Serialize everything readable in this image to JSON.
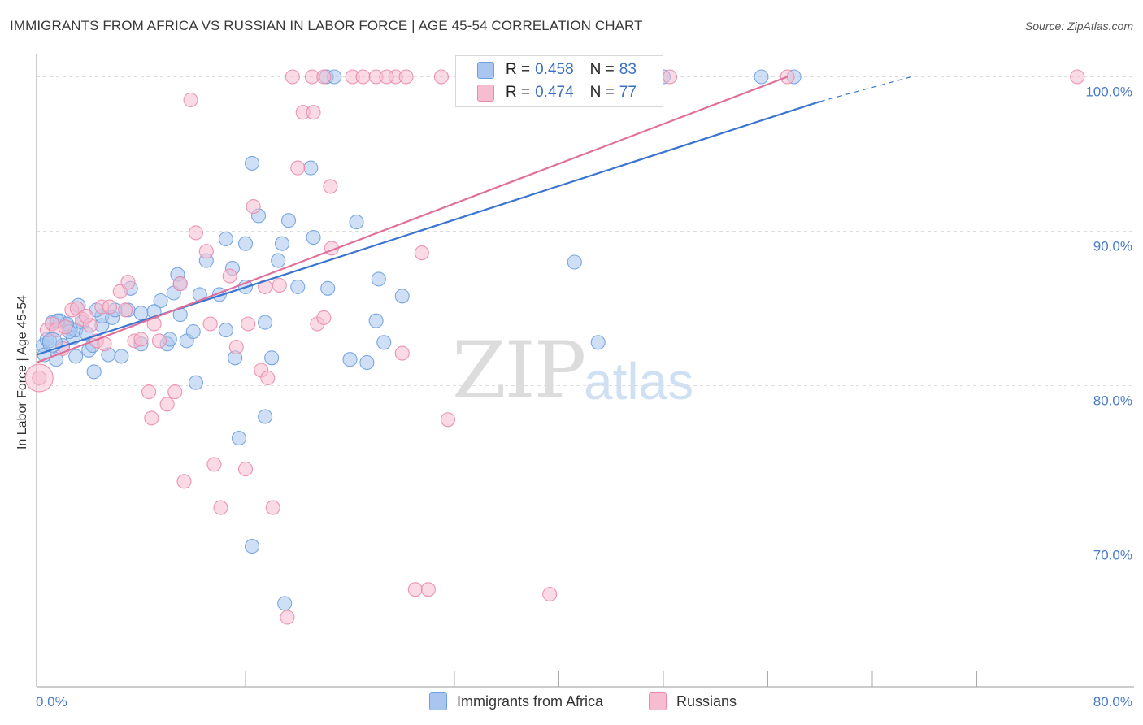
{
  "header": {
    "title": "IMMIGRANTS FROM AFRICA VS RUSSIAN IN LABOR FORCE | AGE 45-54 CORRELATION CHART",
    "source": "Source: ZipAtlas.com"
  },
  "watermark": {
    "zip": "ZIP",
    "atlas": "atlas"
  },
  "legend": {
    "series": [
      {
        "r_label": "R =",
        "r_value": "0.458",
        "n_label": "N =",
        "n_value": "83",
        "color": "#a8c6ef",
        "border": "#6f9fde"
      },
      {
        "r_label": "R =",
        "r_value": "0.474",
        "n_label": "N =",
        "n_value": "77",
        "color": "#f6bcd0",
        "border": "#e98aaa"
      }
    ]
  },
  "bottom_legend": {
    "items": [
      {
        "label": "Immigrants from Africa",
        "color": "#a8c6ef",
        "border": "#6f9fde"
      },
      {
        "label": "Russians",
        "color": "#f6bcd0",
        "border": "#e98aaa"
      }
    ]
  },
  "chart_data": {
    "type": "scatter",
    "title": "IMMIGRANTS FROM AFRICA VS RUSSIAN IN LABOR FORCE | AGE 45-54 CORRELATION CHART",
    "xlabel": "",
    "ylabel": "In Labor Force | Age 45-54",
    "xlim": [
      0,
      80
    ],
    "ylim": [
      60.5,
      101.5
    ],
    "x_tick_labels": [
      {
        "value": 0,
        "label": "0.0%"
      },
      {
        "value": 80,
        "label": "80.0%"
      }
    ],
    "x_minor_ticks": [
      8,
      16,
      24,
      32,
      40,
      48,
      56,
      64,
      72
    ],
    "y_ticks": [
      {
        "value": 70,
        "label": "70.0%"
      },
      {
        "value": 80,
        "label": "80.0%"
      },
      {
        "value": 90,
        "label": "90.0%"
      },
      {
        "value": 100,
        "label": "100.0%"
      }
    ],
    "series": [
      {
        "name": "Immigrants from Africa",
        "color": "#6f9fde",
        "fill": "#a8c6ef",
        "trend": {
          "x0": 0,
          "y0": 82.0,
          "x1": 60,
          "y1": 98.4,
          "dash_to_x": 67,
          "dash_to_y": 100.0
        },
        "points": [
          [
            0.5,
            82.6
          ],
          [
            0.8,
            83.0
          ],
          [
            1.0,
            82.9
          ],
          [
            1.2,
            84.1
          ],
          [
            1.5,
            81.7
          ],
          [
            1.8,
            84.2
          ],
          [
            2.0,
            82.6
          ],
          [
            2.3,
            84.0
          ],
          [
            2.6,
            83.7
          ],
          [
            2.8,
            83.1
          ],
          [
            3.0,
            83.6
          ],
          [
            3.2,
            85.2
          ],
          [
            3.5,
            84.1
          ],
          [
            3.8,
            83.4
          ],
          [
            4.0,
            82.3
          ],
          [
            4.3,
            82.6
          ],
          [
            4.4,
            80.9
          ],
          [
            5.0,
            83.9
          ],
          [
            5.0,
            84.5
          ],
          [
            5.5,
            82.0
          ],
          [
            5.8,
            84.4
          ],
          [
            6.0,
            84.9
          ],
          [
            7.0,
            84.9
          ],
          [
            7.2,
            86.3
          ],
          [
            8.0,
            82.7
          ],
          [
            8.0,
            84.7
          ],
          [
            9.5,
            85.5
          ],
          [
            10.0,
            82.7
          ],
          [
            10.2,
            83.0
          ],
          [
            10.5,
            86.0
          ],
          [
            10.8,
            87.2
          ],
          [
            11.0,
            86.6
          ],
          [
            11.5,
            82.9
          ],
          [
            12.0,
            83.5
          ],
          [
            12.2,
            80.2
          ],
          [
            12.5,
            85.9
          ],
          [
            13.0,
            88.1
          ],
          [
            14.0,
            85.9
          ],
          [
            14.5,
            83.6
          ],
          [
            15.0,
            87.6
          ],
          [
            14.5,
            89.5
          ],
          [
            15.2,
            81.8
          ],
          [
            16.0,
            86.4
          ],
          [
            15.5,
            76.6
          ],
          [
            16.0,
            89.2
          ],
          [
            16.5,
            94.4
          ],
          [
            16.5,
            69.6
          ],
          [
            17.0,
            91.0
          ],
          [
            17.5,
            84.1
          ],
          [
            18.0,
            81.8
          ],
          [
            17.5,
            78.0
          ],
          [
            18.5,
            88.1
          ],
          [
            18.8,
            89.2
          ],
          [
            19.0,
            65.9
          ],
          [
            19.3,
            90.7
          ],
          [
            20.0,
            86.4
          ],
          [
            21.0,
            94.1
          ],
          [
            21.2,
            89.6
          ],
          [
            22.3,
            86.3
          ],
          [
            22.2,
            100.0
          ],
          [
            22.8,
            100.0
          ],
          [
            24.0,
            81.7
          ],
          [
            24.5,
            90.6
          ],
          [
            25.3,
            81.5
          ],
          [
            26.0,
            84.2
          ],
          [
            26.2,
            86.9
          ],
          [
            26.6,
            82.8
          ],
          [
            28.0,
            85.8
          ],
          [
            36.5,
            100.0
          ],
          [
            41.2,
            88.0
          ],
          [
            43.0,
            82.8
          ],
          [
            48.0,
            100.0
          ],
          [
            55.5,
            100.0
          ],
          [
            58.0,
            100.0
          ],
          [
            2.3,
            84.0
          ],
          [
            6.5,
            81.9
          ],
          [
            9.0,
            84.8
          ],
          [
            11.0,
            84.6
          ],
          [
            3.0,
            81.9
          ],
          [
            0.6,
            82.0
          ],
          [
            1.6,
            84.2
          ],
          [
            2.5,
            83.5
          ],
          [
            4.6,
            84.9
          ]
        ]
      },
      {
        "name": "Russians",
        "color": "#e98aaa",
        "fill": "#f6bcd0",
        "trend": {
          "x0": 0,
          "y0": 81.5,
          "x1": 57.5,
          "y1": 100.0
        },
        "points": [
          [
            0.2,
            80.5
          ],
          [
            0.8,
            83.6
          ],
          [
            1.2,
            84.0
          ],
          [
            1.5,
            83.6
          ],
          [
            2.2,
            83.8
          ],
          [
            2.7,
            84.9
          ],
          [
            3.1,
            85.0
          ],
          [
            3.5,
            84.3
          ],
          [
            4.1,
            83.9
          ],
          [
            4.6,
            82.9
          ],
          [
            5.0,
            85.1
          ],
          [
            5.6,
            85.1
          ],
          [
            6.4,
            86.1
          ],
          [
            7.0,
            86.7
          ],
          [
            7.5,
            82.9
          ],
          [
            8.0,
            83.0
          ],
          [
            8.6,
            79.6
          ],
          [
            8.8,
            77.9
          ],
          [
            9.4,
            82.9
          ],
          [
            10.0,
            78.8
          ],
          [
            10.6,
            79.6
          ],
          [
            11.3,
            73.8
          ],
          [
            11.8,
            98.5
          ],
          [
            12.2,
            89.9
          ],
          [
            13.0,
            88.7
          ],
          [
            13.6,
            74.9
          ],
          [
            14.1,
            72.1
          ],
          [
            14.8,
            87.1
          ],
          [
            15.3,
            82.5
          ],
          [
            16.0,
            74.6
          ],
          [
            16.6,
            91.6
          ],
          [
            17.2,
            81.0
          ],
          [
            17.7,
            80.5
          ],
          [
            18.1,
            72.1
          ],
          [
            18.6,
            86.5
          ],
          [
            19.2,
            65.0
          ],
          [
            20.0,
            94.1
          ],
          [
            20.4,
            97.7
          ],
          [
            21.2,
            97.7
          ],
          [
            21.5,
            84.0
          ],
          [
            22.0,
            84.4
          ],
          [
            22.6,
            88.9
          ],
          [
            22.5,
            92.9
          ],
          [
            24.2,
            100.0
          ],
          [
            25.0,
            100.0
          ],
          [
            26.0,
            100.0
          ],
          [
            27.5,
            100.0
          ],
          [
            28.0,
            82.1
          ],
          [
            28.3,
            100.0
          ],
          [
            29.0,
            66.8
          ],
          [
            29.5,
            88.6
          ],
          [
            31.0,
            100.0
          ],
          [
            31.5,
            77.8
          ],
          [
            33.6,
            100.0
          ],
          [
            34.0,
            100.0
          ],
          [
            39.3,
            66.5
          ],
          [
            38.0,
            100.0
          ],
          [
            46.0,
            100.0
          ],
          [
            47.0,
            100.0
          ],
          [
            48.5,
            100.0
          ],
          [
            57.5,
            100.0
          ],
          [
            79.7,
            100.0
          ],
          [
            2.0,
            82.4
          ],
          [
            3.8,
            84.5
          ],
          [
            5.2,
            82.7
          ],
          [
            6.8,
            84.9
          ],
          [
            9.0,
            84.0
          ],
          [
            11.0,
            86.6
          ],
          [
            13.3,
            84.0
          ],
          [
            16.2,
            84.0
          ],
          [
            17.5,
            86.4
          ],
          [
            19.6,
            100.0
          ],
          [
            21.1,
            100.0
          ],
          [
            22.0,
            100.0
          ],
          [
            26.8,
            100.0
          ],
          [
            30.0,
            66.8
          ],
          [
            36.2,
            100.0
          ]
        ]
      }
    ]
  }
}
